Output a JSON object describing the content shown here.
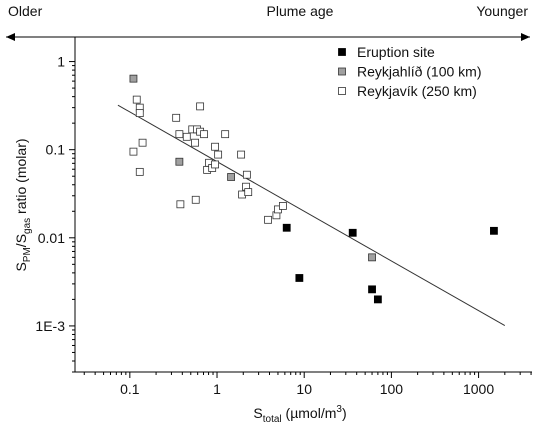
{
  "chart_data": {
    "type": "scatter",
    "x_scale": "log",
    "y_scale": "log",
    "top_annotation": {
      "left": "Older",
      "center": "Plume age",
      "right": "Younger"
    },
    "x_label": {
      "main": "S",
      "sub": "total",
      "rest": " (µmol/m",
      "sup": "3",
      "end": ")"
    },
    "y_label": {
      "main": "S",
      "sub1": "PM",
      "mid": "/S",
      "sub2": "gas",
      "rest": " ratio (molar)"
    },
    "xlim": [
      0.0235,
      4100
    ],
    "ylim": [
      0.0003,
      1.9
    ],
    "xticks": [
      0.1,
      1,
      10,
      100,
      1000
    ],
    "yticks": [
      1,
      0.1,
      0.01,
      {
        "value": 0.001,
        "label": "1E-3"
      }
    ],
    "legend": "top-right",
    "series": [
      {
        "name": "Eruption site",
        "color": "#000000",
        "edge": "#000000",
        "x": [
          6.3,
          8.8,
          36,
          60,
          70,
          1500
        ],
        "values": [
          0.013,
          0.0035,
          0.0114,
          0.0026,
          0.002,
          0.012
        ]
      },
      {
        "name": "Reykjahlíð (100 km)",
        "color": "#a0a0a0",
        "edge": "#333333",
        "x": [
          0.11,
          0.37,
          1.45,
          60
        ],
        "values": [
          0.64,
          0.073,
          0.049,
          0.006
        ]
      },
      {
        "name": "Reykjavík (250 km)",
        "color": "#ffffff",
        "edge": "#333333",
        "x": [
          0.11,
          0.12,
          0.13,
          0.13,
          0.13,
          0.14,
          0.34,
          0.37,
          0.38,
          0.45,
          0.52,
          0.56,
          0.59,
          0.57,
          0.64,
          0.64,
          0.71,
          0.77,
          0.81,
          0.88,
          0.95,
          0.95,
          1.03,
          1.24,
          1.89,
          1.94,
          2.15,
          2.2,
          2.28,
          3.85,
          4.8,
          5.0,
          5.7
        ],
        "values": [
          0.095,
          0.37,
          0.3,
          0.26,
          0.056,
          0.12,
          0.23,
          0.15,
          0.024,
          0.14,
          0.17,
          0.12,
          0.17,
          0.027,
          0.31,
          0.16,
          0.15,
          0.059,
          0.071,
          0.062,
          0.068,
          0.108,
          0.088,
          0.15,
          0.088,
          0.031,
          0.038,
          0.052,
          0.033,
          0.016,
          0.018,
          0.021,
          0.023
        ]
      }
    ],
    "fit_line": {
      "x": [
        0.073,
        2000
      ],
      "values": [
        0.32,
        0.00101
      ]
    }
  }
}
